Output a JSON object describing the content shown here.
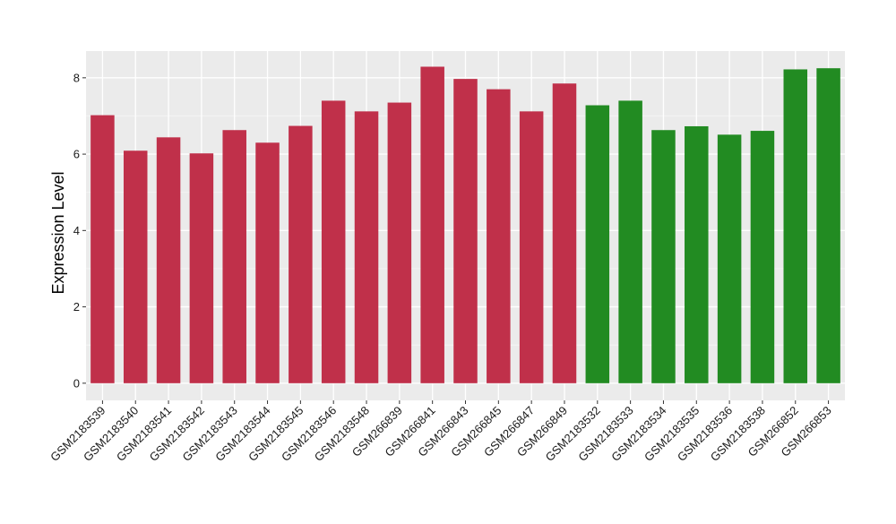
{
  "chart_data": {
    "type": "bar",
    "ylabel": "Expression Level",
    "xlabel": "",
    "ylim": [
      -0.45,
      8.7
    ],
    "yticks": [
      0,
      2,
      4,
      6,
      8
    ],
    "grid": true,
    "categories": [
      "GSM2183539",
      "GSM2183540",
      "GSM2183541",
      "GSM2183542",
      "GSM2183543",
      "GSM2183544",
      "GSM2183545",
      "GSM2183546",
      "GSM2183548",
      "GSM266839",
      "GSM266841",
      "GSM266843",
      "GSM266845",
      "GSM266847",
      "GSM266849",
      "GSM2183532",
      "GSM2183533",
      "GSM2183534",
      "GSM2183535",
      "GSM2183536",
      "GSM2183538",
      "GSM266852",
      "GSM266853"
    ],
    "values": [
      7.02,
      6.09,
      6.44,
      6.02,
      6.63,
      6.3,
      6.74,
      7.4,
      7.12,
      7.35,
      8.29,
      7.97,
      7.7,
      7.12,
      7.85,
      7.28,
      7.4,
      6.63,
      6.73,
      6.51,
      6.61,
      8.22,
      8.25
    ],
    "bar_colors": [
      "#c0304a",
      "#c0304a",
      "#c0304a",
      "#c0304a",
      "#c0304a",
      "#c0304a",
      "#c0304a",
      "#c0304a",
      "#c0304a",
      "#c0304a",
      "#c0304a",
      "#c0304a",
      "#c0304a",
      "#c0304a",
      "#c0304a",
      "#228b22",
      "#228b22",
      "#228b22",
      "#228b22",
      "#228b22",
      "#228b22",
      "#228b22",
      "#228b22"
    ],
    "panel_background": "#ebebeb",
    "grid_major_color": "#ffffff",
    "grid_minor_color": "#f5f5f5"
  }
}
